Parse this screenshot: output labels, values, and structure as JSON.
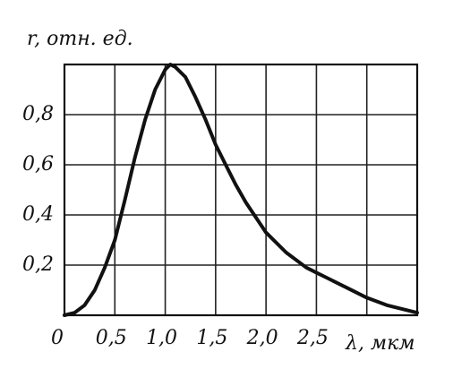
{
  "chart_data": {
    "type": "line",
    "y_label": "r, отн. ед.",
    "x_label": "λ, мкм",
    "x": [
      0,
      0.1,
      0.2,
      0.3,
      0.4,
      0.5,
      0.6,
      0.7,
      0.8,
      0.9,
      1.0,
      1.05,
      1.1,
      1.2,
      1.3,
      1.4,
      1.5,
      1.6,
      1.7,
      1.8,
      2.0,
      2.2,
      2.4,
      2.5,
      2.6,
      2.8,
      3.0,
      3.2,
      3.5
    ],
    "series": [
      {
        "color": "#111111",
        "values": [
          0,
          0.01,
          0.04,
          0.1,
          0.19,
          0.3,
          0.46,
          0.63,
          0.78,
          0.9,
          0.98,
          1.0,
          0.99,
          0.95,
          0.87,
          0.78,
          0.68,
          0.6,
          0.52,
          0.45,
          0.33,
          0.25,
          0.19,
          0.17,
          0.15,
          0.11,
          0.07,
          0.04,
          0.01
        ]
      }
    ],
    "xlim": [
      0,
      3.5
    ],
    "ylim": [
      0,
      1
    ],
    "xticks": [
      0,
      {
        "value": 0.5,
        "label": "0,5"
      },
      {
        "value": 1.0,
        "label": "1,0"
      },
      {
        "value": 1.5,
        "label": "1,5"
      },
      {
        "value": 2.0,
        "label": "2,0"
      },
      {
        "value": 2.5,
        "label": "2,5"
      }
    ],
    "yticks": [
      {
        "value": 0.2,
        "label": "0,2"
      },
      {
        "value": 0.4,
        "label": "0,4"
      },
      {
        "value": 0.6,
        "label": "0,6"
      },
      {
        "value": 0.8,
        "label": "0,8"
      }
    ],
    "xgrid": [
      0.5,
      1.0,
      1.5,
      2.0,
      2.5,
      3.0
    ],
    "grid": true
  }
}
